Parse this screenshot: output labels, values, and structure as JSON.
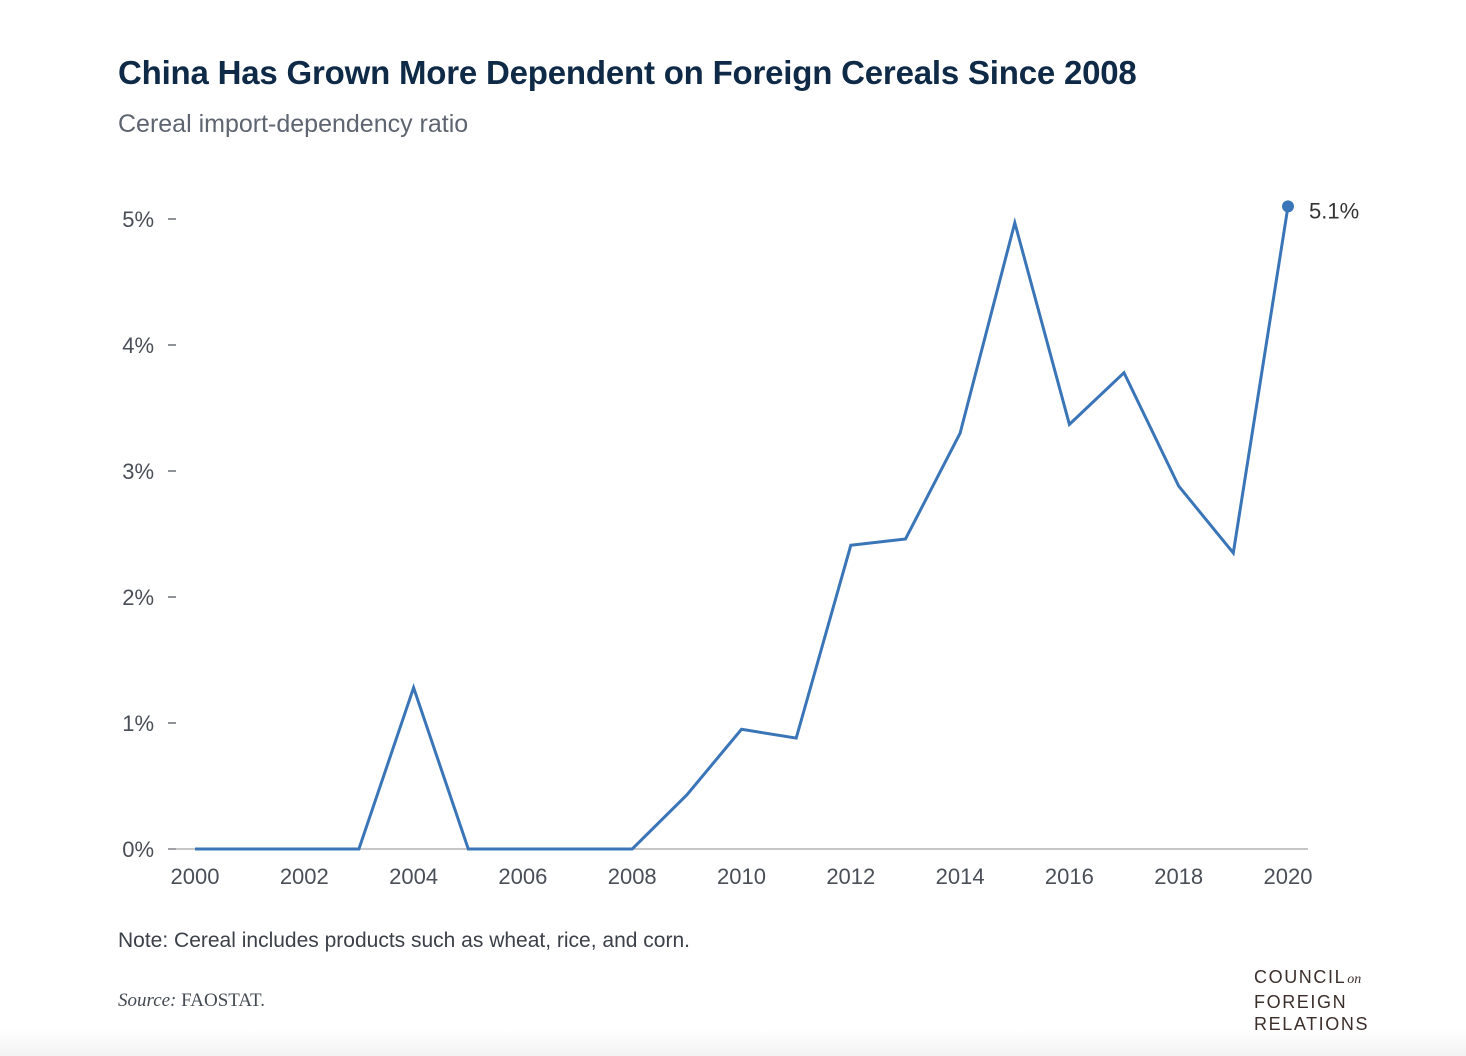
{
  "header": {
    "title": "China Has Grown More Dependent on Foreign Cereals Since 2008",
    "subtitle": "Cereal import-dependency ratio"
  },
  "footer": {
    "note": "Note: Cereal includes products such as wheat, rice, and corn.",
    "source_label": "Source:",
    "source_value": "FAOSTAT."
  },
  "logo": {
    "line1": "COUNCIL",
    "line1_suffix": "on",
    "line2": "FOREIGN",
    "line3": "RELATIONS"
  },
  "colors": {
    "line": "#3a75b8",
    "title": "#0f2a47",
    "axis": "#6b6f75"
  },
  "chart_data": {
    "type": "line",
    "title": "China Has Grown More Dependent on Foreign Cereals Since 2008",
    "subtitle": "Cereal import-dependency ratio",
    "xlabel": "",
    "ylabel": "",
    "x": [
      2000,
      2001,
      2002,
      2003,
      2004,
      2005,
      2006,
      2007,
      2008,
      2009,
      2010,
      2011,
      2012,
      2013,
      2014,
      2015,
      2016,
      2017,
      2018,
      2019,
      2020
    ],
    "series": [
      {
        "values": [
          0,
          0,
          0,
          0,
          1.28,
          0,
          0,
          0,
          0,
          0.43,
          0.95,
          0.88,
          2.41,
          2.46,
          3.3,
          4.97,
          3.37,
          3.78,
          2.88,
          2.35,
          5.1
        ]
      }
    ],
    "xlim": [
      2000,
      2020
    ],
    "ylim": [
      0,
      5
    ],
    "xticks": [
      "2000",
      "2002",
      "2004",
      "2006",
      "2008",
      "2010",
      "2012",
      "2014",
      "2016",
      "2018",
      "2020"
    ],
    "yticks": [
      "0%",
      "1%",
      "2%",
      "3%",
      "4%",
      "5%"
    ],
    "end_label": "5.1%",
    "grid": false,
    "legend": "none"
  }
}
